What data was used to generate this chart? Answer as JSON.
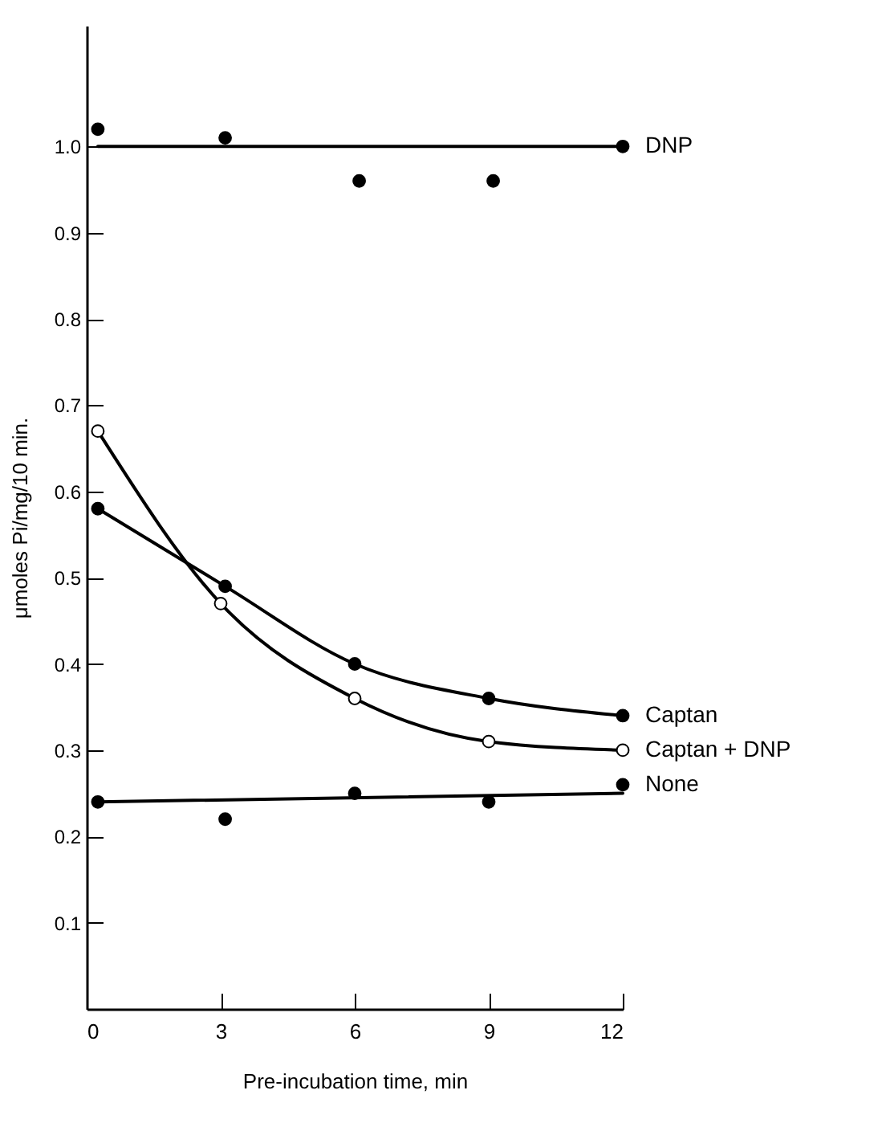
{
  "chart_data": {
    "type": "line",
    "xlabel": "Pre-incubation time,   min",
    "ylabel": "μmoles Pi/mg/10 min.",
    "xlim": [
      0,
      12
    ],
    "ylim": [
      0,
      1.14
    ],
    "xticks": [
      0,
      3,
      6,
      9,
      12
    ],
    "yticks": [
      0.1,
      0.2,
      0.3,
      0.4,
      0.5,
      0.6,
      0.7,
      0.8,
      0.9,
      {
        "value": 1,
        "label": "1.0"
      }
    ],
    "grid": false,
    "series": [
      {
        "name": "DNP",
        "type": "scatter",
        "marker": "circle",
        "color": "#000000",
        "x": [
          0.25,
          3.1,
          6.1,
          9.1,
          12
        ],
        "values": [
          1.02,
          1.01,
          0.96,
          0.96,
          1.0
        ]
      },
      {
        "marker": "none",
        "color": "#000000",
        "x": [
          0.25,
          12
        ],
        "values": [
          1.0,
          1.0
        ]
      },
      {
        "name": "Captan",
        "marker": "circle",
        "color": "#000000",
        "x": [
          0.25,
          3.1,
          6,
          9,
          12
        ],
        "values": [
          0.58,
          0.49,
          0.4,
          0.36,
          0.34
        ]
      },
      {
        "marker": "none",
        "color": "#000000",
        "x": [
          0.25,
          3,
          6,
          9,
          12
        ],
        "values": [
          0.67,
          0.47,
          0.36,
          0.31,
          0.3
        ]
      },
      {
        "name": "Captan + DNP",
        "type": "scatter",
        "marker": "circle",
        "color": "#ffffff",
        "x": [
          0.25,
          3,
          6,
          9,
          12
        ],
        "values": [
          0.67,
          0.47,
          0.36,
          0.31,
          0.3
        ]
      },
      {
        "name": "None",
        "type": "scatter",
        "marker": "circle",
        "color": "#000000",
        "x": [
          0.25,
          3.1,
          6,
          9,
          12
        ],
        "values": [
          0.24,
          0.22,
          0.25,
          0.24,
          0.26
        ]
      },
      {
        "marker": "none",
        "color": "#000000",
        "x": [
          0.25,
          12
        ],
        "values": [
          0.24,
          0.25
        ]
      }
    ]
  }
}
